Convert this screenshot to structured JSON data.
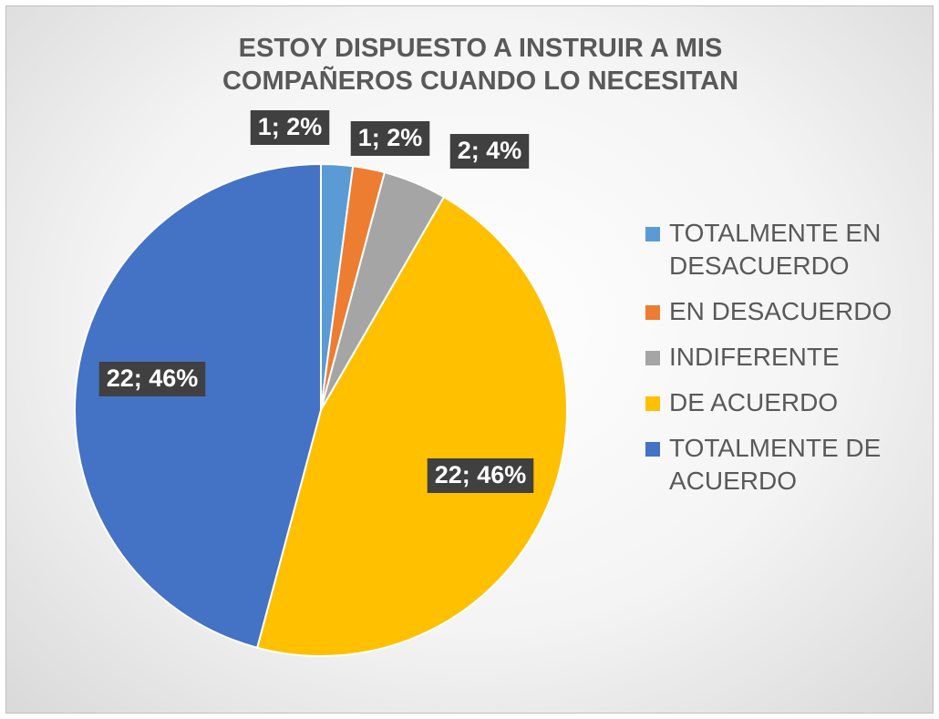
{
  "chart_data": {
    "type": "pie",
    "title": "ESTOY DISPUESTO A INSTRUIR A MIS COMPAÑEROS CUANDO LO NECESITAN",
    "categories": [
      "TOTALMENTE EN DESACUERDO",
      "EN DESACUERDO",
      "INDIFERENTE",
      "DE ACUERDO",
      "TOTALMENTE DE ACUERDO"
    ],
    "values": [
      1,
      1,
      2,
      22,
      22
    ],
    "value_labels": [
      "1; 2%",
      "1; 2%",
      "2; 4%",
      "22; 46%",
      "22; 46%"
    ],
    "colors": [
      "#5b9bd5",
      "#ed7d31",
      "#a5a5a5",
      "#ffc000",
      "#4472c4"
    ],
    "legend": "right"
  }
}
